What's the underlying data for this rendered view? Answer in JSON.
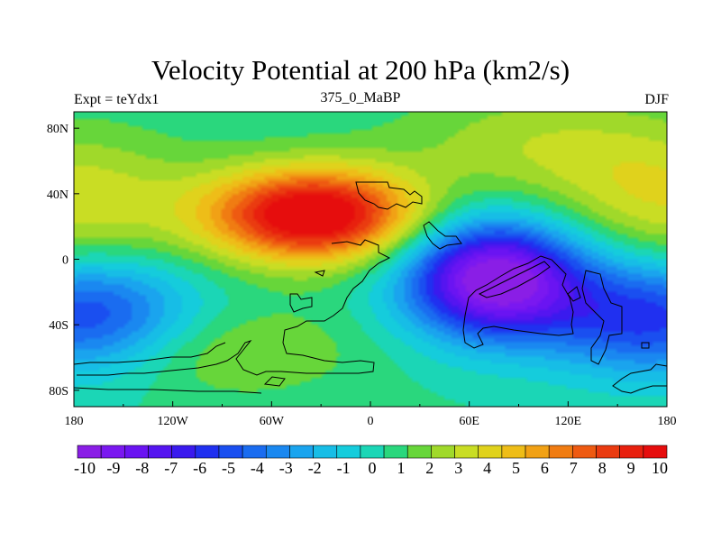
{
  "chart_data": {
    "type": "heatmap",
    "title": "Velocity Potential at 200 hPa (km2/s)",
    "left_label": "Expt = teYdx1",
    "center_label": "375_0_MaBP",
    "right_label": "DJF",
    "x_ticks": [
      "180",
      "120W",
      "60W",
      "0",
      "60E",
      "120E",
      "180"
    ],
    "x_tick_values": [
      -180,
      -120,
      -60,
      0,
      60,
      120,
      180
    ],
    "y_ticks": [
      "80N",
      "40N",
      "0",
      "40S",
      "80S"
    ],
    "y_tick_values": [
      80,
      40,
      0,
      -40,
      -80
    ],
    "xlim": [
      -180,
      180
    ],
    "ylim": [
      -90,
      90
    ],
    "colorbar_labels": [
      "-10",
      "-9",
      "-8",
      "-7",
      "-6",
      "-5",
      "-4",
      "-3",
      "-2",
      "-1",
      "0",
      "1",
      "2",
      "3",
      "4",
      "5",
      "6",
      "7",
      "8",
      "9",
      "10"
    ],
    "colorbar_levels": [
      -10,
      -9,
      -8,
      -7,
      -6,
      -5,
      -4,
      -3,
      -2,
      -1,
      0,
      1,
      2,
      3,
      4,
      5,
      6,
      7,
      8,
      9,
      10
    ],
    "colorbar_colors": [
      "#8a1ee6",
      "#7a18f0",
      "#6a14f2",
      "#5515f0",
      "#3a1aee",
      "#2030f0",
      "#1a4ff0",
      "#1a6cf0",
      "#1a88f0",
      "#1aa4ee",
      "#17bde6",
      "#15ccdc",
      "#1bd6b6",
      "#2ad77d",
      "#67d63a",
      "#a0d92a",
      "#c9dd24",
      "#e0d21c",
      "#eebd18",
      "#f1a115",
      "#f07c12",
      "#ee5a11",
      "#ea3b10",
      "#e8200e",
      "#e60d0d"
    ],
    "field_centers": [
      {
        "lon": -35,
        "lat": 27,
        "amp": 10.5,
        "sigma_lon": 45,
        "sigma_lat": 20
      },
      {
        "lon": 75,
        "lat": -12,
        "amp": -11.0,
        "sigma_lon": 38,
        "sigma_lat": 25
      },
      {
        "lon": 170,
        "lat": -35,
        "amp": -6.0,
        "sigma_lon": 45,
        "sigma_lat": 25
      },
      {
        "lon": -170,
        "lat": -35,
        "amp": -6.0,
        "sigma_lon": 45,
        "sigma_lat": 25
      },
      {
        "lon": -180,
        "lat": 35,
        "amp": 3.0,
        "sigma_lon": 50,
        "sigma_lat": 30
      },
      {
        "lon": 180,
        "lat": 35,
        "amp": 3.0,
        "sigma_lon": 50,
        "sigma_lat": 30
      },
      {
        "lon": 100,
        "lat": 70,
        "amp": 2.0,
        "sigma_lon": 60,
        "sigma_lat": 25
      },
      {
        "lon": -100,
        "lat": -55,
        "amp": 2.0,
        "sigma_lon": 60,
        "sigma_lat": 20
      }
    ],
    "field_base": 0.5
  }
}
